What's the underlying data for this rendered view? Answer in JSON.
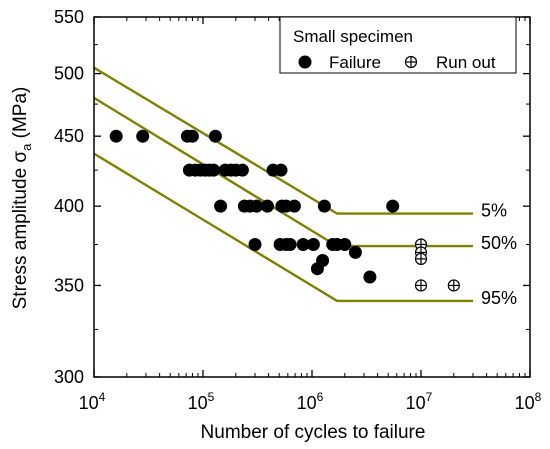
{
  "chart_data": {
    "type": "scatter",
    "xlabel": "Number of cycles to failure",
    "ylabel": "Stress amplitude σ",
    "ylabel_sub": "a",
    "ylabel_unit": " (MPa)",
    "x_scale": "log",
    "y_scale": "log",
    "xlim": [
      10000,
      100000000
    ],
    "ylim": [
      300,
      550
    ],
    "x_ticks": [
      {
        "value": 10000,
        "base": "10",
        "exp": "4"
      },
      {
        "value": 100000,
        "base": "10",
        "exp": "5"
      },
      {
        "value": 1000000,
        "base": "10",
        "exp": "6"
      },
      {
        "value": 10000000,
        "base": "10",
        "exp": "7"
      },
      {
        "value": 100000000,
        "base": "10",
        "exp": "8"
      }
    ],
    "y_ticks": [
      {
        "value": 300,
        "label": "300"
      },
      {
        "value": 350,
        "label": "350"
      },
      {
        "value": 400,
        "label": "400"
      },
      {
        "value": 450,
        "label": "450"
      },
      {
        "value": 500,
        "label": "500"
      },
      {
        "value": 550,
        "label": "550"
      }
    ],
    "legend": {
      "title": "Small specimen",
      "position": "top-right",
      "entries": [
        {
          "label": "Failure",
          "marker": "filled-circle"
        },
        {
          "label": "Run out",
          "marker": "circle-plus"
        }
      ]
    },
    "series": [
      {
        "name": "Failure",
        "marker": "filled-circle",
        "points": [
          [
            16000,
            450
          ],
          [
            28000,
            450
          ],
          [
            72000,
            450
          ],
          [
            80000,
            450
          ],
          [
            130000,
            450
          ],
          [
            75000,
            425
          ],
          [
            85000,
            425
          ],
          [
            95000,
            425
          ],
          [
            105000,
            425
          ],
          [
            115000,
            425
          ],
          [
            125000,
            425
          ],
          [
            160000,
            425
          ],
          [
            180000,
            425
          ],
          [
            200000,
            425
          ],
          [
            230000,
            425
          ],
          [
            440000,
            425
          ],
          [
            520000,
            425
          ],
          [
            145000,
            400
          ],
          [
            240000,
            400
          ],
          [
            270000,
            400
          ],
          [
            310000,
            400
          ],
          [
            390000,
            400
          ],
          [
            530000,
            400
          ],
          [
            580000,
            400
          ],
          [
            690000,
            400
          ],
          [
            1300000,
            400
          ],
          [
            5500000,
            400
          ],
          [
            300000,
            375
          ],
          [
            510000,
            375
          ],
          [
            580000,
            375
          ],
          [
            630000,
            375
          ],
          [
            830000,
            375
          ],
          [
            1030000,
            375
          ],
          [
            1550000,
            375
          ],
          [
            1700000,
            375
          ],
          [
            2000000,
            375
          ],
          [
            2500000,
            370
          ],
          [
            1250000,
            365
          ],
          [
            1120000,
            360
          ],
          [
            3400000,
            355
          ]
        ]
      },
      {
        "name": "Run out",
        "marker": "circle-plus",
        "points": [
          [
            10000000,
            375
          ],
          [
            10000000,
            370
          ],
          [
            10000000,
            366
          ],
          [
            10000000,
            350
          ],
          [
            20000000,
            350
          ]
        ]
      }
    ],
    "lines": [
      {
        "label": "5%",
        "color": "#7f7f00",
        "points": [
          [
            10000,
            505
          ],
          [
            1700000,
            395
          ],
          [
            30000000,
            395
          ]
        ]
      },
      {
        "label": "50%",
        "color": "#7f7f00",
        "points": [
          [
            10000,
            480
          ],
          [
            1700000,
            374
          ],
          [
            30000000,
            374
          ]
        ]
      },
      {
        "label": "95%",
        "color": "#7f7f00",
        "points": [
          [
            10000,
            437
          ],
          [
            1700000,
            341
          ],
          [
            30000000,
            341
          ]
        ]
      }
    ],
    "grid": false
  }
}
